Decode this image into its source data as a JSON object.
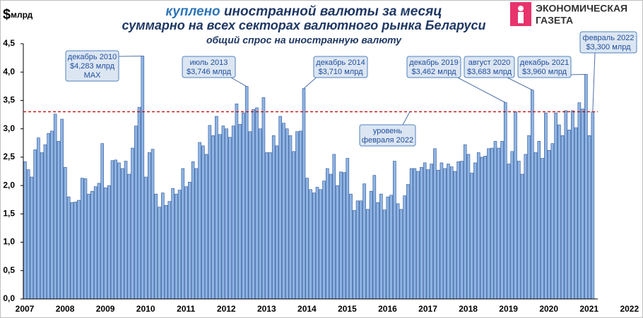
{
  "chart_data": {
    "type": "bar",
    "title_highlight": "куплено",
    "title": "иностранной валюты за месяц",
    "title_line2": "суммарно на всех секторах валютного рынка Беларуси",
    "subtitle": "общий спрос на иностранную валюту",
    "y_unit_symbol": "$",
    "y_label": "млрд",
    "logo": [
      "ЭКОНОМИЧЕСКАЯ",
      "ГАЗЕТА"
    ],
    "color": "#8eb4e3",
    "ylim": [
      0,
      4.5
    ],
    "yticks": [
      {
        "value": 0,
        "label": "0,0"
      },
      {
        "value": 0.5,
        "label": "0,5"
      },
      {
        "value": 1,
        "label": "1,0"
      },
      {
        "value": 1.5,
        "label": "1,5"
      },
      {
        "value": 2,
        "label": "2,0"
      },
      {
        "value": 2.5,
        "label": "2,5"
      },
      {
        "value": 3,
        "label": "3,0"
      },
      {
        "value": 3.5,
        "label": "3,5"
      },
      {
        "value": 4,
        "label": "4,0"
      },
      {
        "value": 4.5,
        "label": "4,5"
      }
    ],
    "x_labels": [
      "2007",
      "2008",
      "2009",
      "2010",
      "2011",
      "2012",
      "2013",
      "2014",
      "2015",
      "2016",
      "2017",
      "2018",
      "2019",
      "2020",
      "2021",
      "2022"
    ],
    "values": [
      2.42,
      2.28,
      2.15,
      2.63,
      2.84,
      2.58,
      2.72,
      2.92,
      2.96,
      3.26,
      2.78,
      3.17,
      2.32,
      1.8,
      1.7,
      1.71,
      1.74,
      2.13,
      2.12,
      1.85,
      1.9,
      1.98,
      2.04,
      2.74,
      1.96,
      2.0,
      2.44,
      2.45,
      2.4,
      2.3,
      2.43,
      2.2,
      2.66,
      3.05,
      3.38,
      4.283,
      2.15,
      2.58,
      2.64,
      1.85,
      1.62,
      1.87,
      1.65,
      1.72,
      1.95,
      1.85,
      1.92,
      2.3,
      1.98,
      2.06,
      2.42,
      2.3,
      2.76,
      2.7,
      2.55,
      3.06,
      2.88,
      3.22,
      2.9,
      3.05,
      3.0,
      2.85,
      3.05,
      3.44,
      3.08,
      3.28,
      3.746,
      2.95,
      3.34,
      3.37,
      3.0,
      3.55,
      2.58,
      2.58,
      2.88,
      2.7,
      3.22,
      3.1,
      3.0,
      2.88,
      2.6,
      2.95,
      2.96,
      3.71,
      2.13,
      1.93,
      1.87,
      1.97,
      1.93,
      2.08,
      2.3,
      2.2,
      2.55,
      2.0,
      2.24,
      2.23,
      2.48,
      1.85,
      1.56,
      1.73,
      1.73,
      2.03,
      1.58,
      1.9,
      2.18,
      1.7,
      1.85,
      1.57,
      1.8,
      1.83,
      2.43,
      1.68,
      1.58,
      1.82,
      2.02,
      2.3,
      2.3,
      2.25,
      2.32,
      2.4,
      2.28,
      2.38,
      2.65,
      2.27,
      2.4,
      2.3,
      2.38,
      2.33,
      2.25,
      2.42,
      2.43,
      2.72,
      2.55,
      2.22,
      2.4,
      2.58,
      2.5,
      2.52,
      2.65,
      2.66,
      2.78,
      2.66,
      2.78,
      3.462,
      2.38,
      2.6,
      3.3,
      2.43,
      2.2,
      2.55,
      2.88,
      3.683,
      2.58,
      2.78,
      2.48,
      3.28,
      2.62,
      2.74,
      3.28,
      3.07,
      2.88,
      3.32,
      2.98,
      3.32,
      3.02,
      3.46,
      3.35,
      3.96,
      2.88,
      3.3
    ],
    "reference_line": {
      "value": 3.3,
      "color": "#c00000",
      "label": [
        "уровень",
        "февраля 2022"
      ]
    },
    "annotations": [
      [
        "декабрь 2010",
        "$4,283 млрд",
        "MAX"
      ],
      [
        "июль 2013",
        "$3,746 млрд"
      ],
      [
        "декабрь 2014",
        "$3,710 млрд"
      ],
      [
        "декабрь 2019",
        "$3,462 млрд"
      ],
      [
        "август 2020",
        "$3,683 млрд"
      ],
      [
        "декабрь 2021",
        "$3,960 млрд"
      ],
      [
        "февраль 2022",
        "$3,300 млрд"
      ]
    ]
  }
}
